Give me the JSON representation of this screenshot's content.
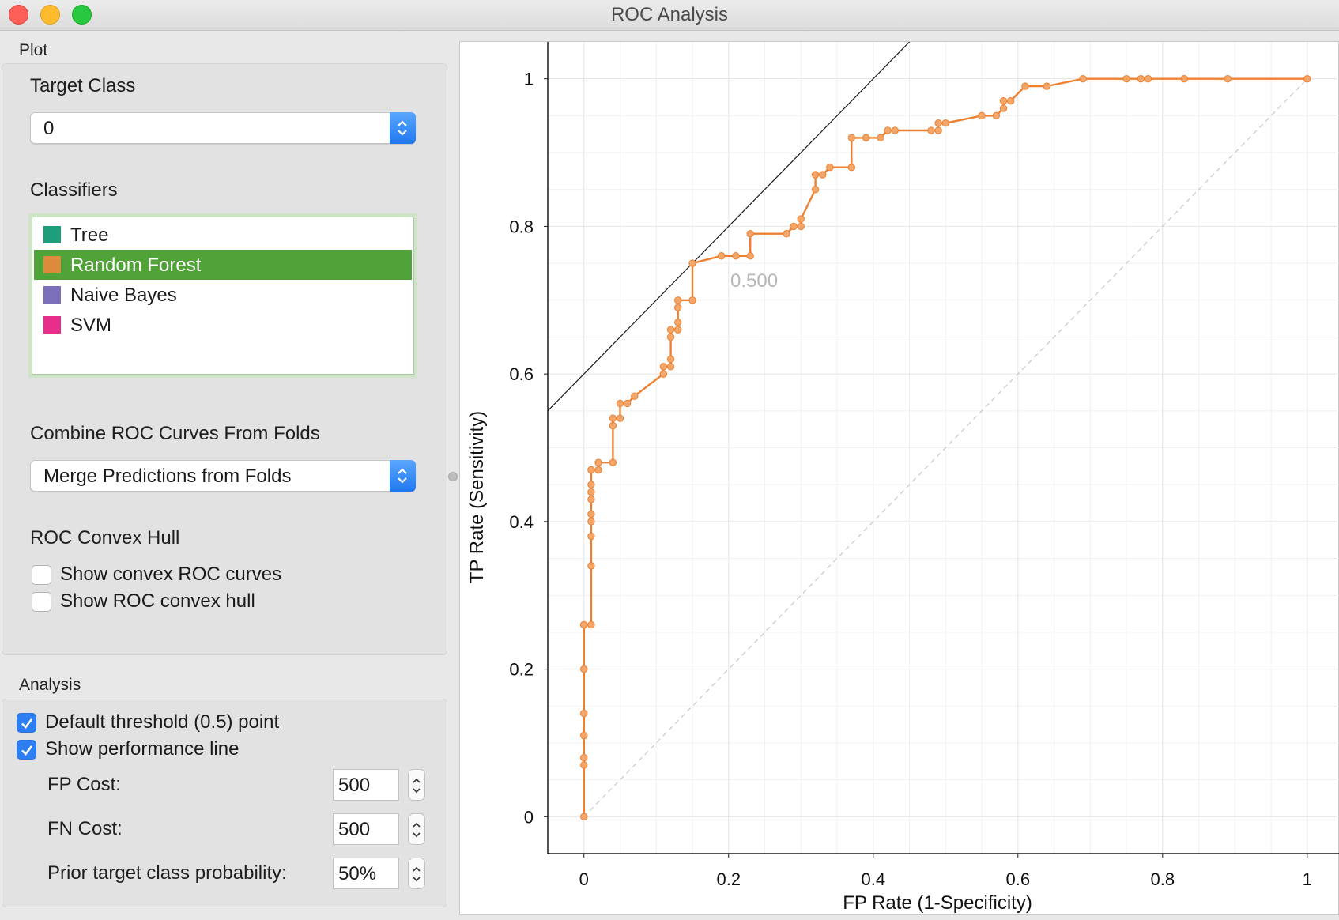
{
  "window": {
    "title": "ROC Analysis"
  },
  "plot_section": {
    "label": "Plot",
    "target_class_label": "Target Class",
    "target_class_value": "0",
    "classifiers_label": "Classifiers",
    "classifiers": [
      {
        "name": "Tree",
        "color": "#1f9e7c",
        "selected": false
      },
      {
        "name": "Random Forest",
        "color": "#dd8a3d",
        "selected": true
      },
      {
        "name": "Naive Bayes",
        "color": "#7b6fbb",
        "selected": false
      },
      {
        "name": "SVM",
        "color": "#e62e8a",
        "selected": false
      }
    ],
    "combine_label": "Combine ROC Curves From Folds",
    "combine_value": "Merge Predictions from Folds",
    "hull_label": "ROC Convex Hull",
    "show_convex_curves": {
      "label": "Show convex ROC curves",
      "checked": false
    },
    "show_convex_hull": {
      "label": "Show ROC convex hull",
      "checked": false
    }
  },
  "analysis_section": {
    "label": "Analysis",
    "default_threshold": {
      "label": "Default threshold (0.5) point",
      "checked": true
    },
    "performance_line": {
      "label": "Show performance line",
      "checked": true
    },
    "fp_cost": {
      "label": "FP Cost:",
      "value": "500"
    },
    "fn_cost": {
      "label": "FN Cost:",
      "value": "500"
    },
    "prior": {
      "label": "Prior target class probability:",
      "value": "50%"
    }
  },
  "chart_data": {
    "type": "line",
    "xlabel": "FP Rate (1-Specificity)",
    "ylabel": "TP Rate (Sensitivity)",
    "xlim": [
      -0.05,
      1.045
    ],
    "ylim": [
      -0.05,
      1.05
    ],
    "xticks": [
      "0",
      "0.2",
      "0.4",
      "0.6",
      "0.8",
      "1"
    ],
    "yticks": [
      "0",
      "0.2",
      "0.4",
      "0.6",
      "0.8",
      "1"
    ],
    "grid": true,
    "diagonal_reference": true,
    "series": [
      {
        "name": "Random Forest",
        "color": "#ee8030",
        "x": [
          0,
          0,
          0,
          0,
          0,
          0,
          0,
          0,
          0.01,
          0.01,
          0.01,
          0.01,
          0.01,
          0.01,
          0.01,
          0.01,
          0.01,
          0.02,
          0.02,
          0.04,
          0.04,
          0.04,
          0.05,
          0.05,
          0.06,
          0.07,
          0.11,
          0.11,
          0.12,
          0.12,
          0.12,
          0.12,
          0.13,
          0.13,
          0.13,
          0.13,
          0.15,
          0.15,
          0.19,
          0.21,
          0.23,
          0.23,
          0.28,
          0.29,
          0.3,
          0.3,
          0.32,
          0.32,
          0.33,
          0.34,
          0.37,
          0.37,
          0.39,
          0.41,
          0.42,
          0.43,
          0.48,
          0.49,
          0.49,
          0.5,
          0.55,
          0.57,
          0.58,
          0.58,
          0.59,
          0.61,
          0.64,
          0.69,
          0.75,
          0.77,
          0.78,
          0.83,
          0.89,
          1
        ],
        "y": [
          0,
          0.07,
          0.08,
          0.11,
          0.14,
          0.2,
          0.26,
          0.26,
          0.26,
          0.34,
          0.38,
          0.4,
          0.41,
          0.43,
          0.44,
          0.45,
          0.47,
          0.47,
          0.48,
          0.48,
          0.53,
          0.54,
          0.54,
          0.56,
          0.56,
          0.57,
          0.6,
          0.61,
          0.61,
          0.62,
          0.65,
          0.66,
          0.66,
          0.67,
          0.69,
          0.7,
          0.7,
          0.75,
          0.76,
          0.76,
          0.76,
          0.79,
          0.79,
          0.8,
          0.8,
          0.81,
          0.85,
          0.87,
          0.87,
          0.88,
          0.88,
          0.92,
          0.92,
          0.92,
          0.93,
          0.93,
          0.93,
          0.93,
          0.94,
          0.94,
          0.95,
          0.95,
          0.96,
          0.97,
          0.97,
          0.99,
          0.99,
          1,
          1,
          1,
          1,
          1,
          1,
          1
        ]
      }
    ],
    "threshold_point": {
      "x": 0.15,
      "y": 0.75,
      "label": "0.500"
    },
    "performance_line": {
      "slope": 1.0,
      "through": [
        0.15,
        0.75
      ]
    }
  }
}
